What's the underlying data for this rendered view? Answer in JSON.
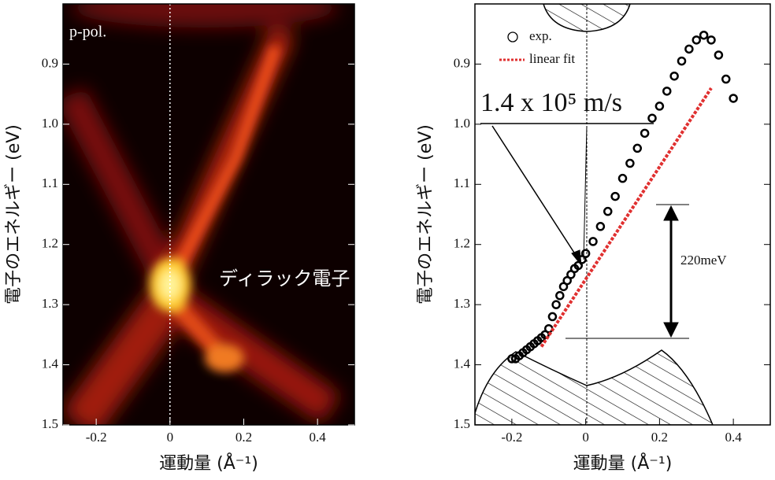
{
  "chart_data": [
    {
      "type": "heatmap",
      "xlabel": "運動量 (Å⁻¹)",
      "ylabel": "電子のエネルギー (eV)",
      "annotations": [
        "p-pol.",
        "ディラック電子"
      ],
      "xlim": [
        -0.29,
        0.5
      ],
      "xticks": [
        -0.2,
        0,
        0.2,
        0.4
      ],
      "ylim": [
        1.5,
        0.8
      ],
      "yticks": [
        0.9,
        {
          "value": 1,
          "label": "1.0"
        },
        1.1,
        1.2,
        1.3,
        1.4,
        1.5
      ]
    },
    {
      "type": "scatter",
      "xlabel": "運動量 (Å⁻¹)",
      "ylabel": "電子のエネルギー (eV)",
      "annotations": [
        "1.4 x 10⁵ m/s",
        "220meV"
      ],
      "xlim": [
        -0.3,
        0.5
      ],
      "xticks": [
        -0.2,
        0,
        0.2,
        0.4
      ],
      "ylim": [
        1.5,
        0.8
      ],
      "yticks": [
        0.9,
        {
          "value": 1,
          "label": "1.0"
        },
        1.1,
        1.2,
        1.3,
        1.4,
        1.5
      ],
      "series": [
        {
          "name": "exp.",
          "type": "scatter",
          "color": "#000000",
          "x": [
            -0.2,
            -0.19,
            -0.18,
            -0.17,
            -0.16,
            -0.15,
            -0.14,
            -0.13,
            -0.12,
            -0.11,
            -0.1,
            -0.09,
            -0.08,
            -0.07,
            -0.06,
            -0.05,
            -0.04,
            -0.03,
            -0.02,
            -0.01,
            0,
            0.02,
            0.04,
            0.06,
            0.08,
            0.1,
            0.12,
            0.14,
            0.16,
            0.18,
            0.2,
            0.22,
            0.24,
            0.26,
            0.28,
            0.3,
            0.32,
            0.34,
            0.36,
            0.38,
            0.4
          ],
          "values": [
            1.39,
            1.39,
            1.385,
            1.38,
            1.375,
            1.37,
            1.365,
            1.36,
            1.355,
            1.35,
            1.34,
            1.32,
            1.3,
            1.285,
            1.27,
            1.26,
            1.25,
            1.24,
            1.235,
            1.225,
            1.215,
            1.195,
            1.17,
            1.145,
            1.12,
            1.09,
            1.065,
            1.04,
            1.015,
            0.99,
            0.97,
            0.945,
            0.92,
            0.895,
            0.875,
            0.86,
            0.852,
            0.86,
            0.885,
            0.925,
            0.957
          ]
        },
        {
          "name": "linear fit",
          "type": "line",
          "color": "#e03030",
          "x": [
            -0.12,
            0.34
          ],
          "values": [
            1.37,
            0.94
          ]
        }
      ]
    }
  ]
}
